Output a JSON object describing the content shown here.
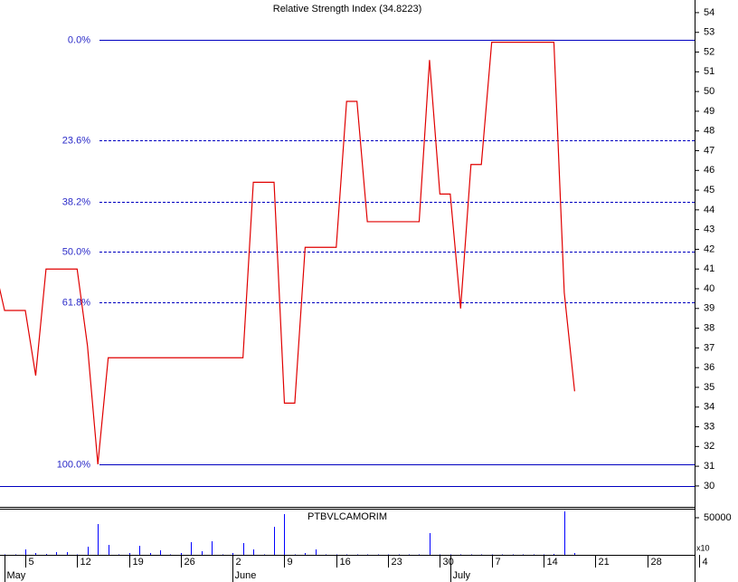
{
  "chart_data": {
    "type": "line",
    "title": "Relative Strength Index (34.8223)",
    "categories": [
      null,
      null,
      null,
      "5",
      null,
      null,
      null,
      null,
      "12",
      null,
      null,
      null,
      null,
      "19",
      null,
      null,
      null,
      null,
      "26",
      null,
      null,
      null,
      null,
      "2",
      null,
      null,
      null,
      null,
      "9",
      null,
      null,
      null,
      null,
      "16",
      null,
      null,
      null,
      null,
      "23",
      null,
      null,
      null,
      null,
      "30",
      null,
      null,
      null,
      null,
      "7",
      null,
      null,
      null,
      null,
      "14",
      null,
      null,
      null,
      null,
      "21",
      null,
      null,
      null,
      null,
      "28",
      null,
      null,
      null,
      null,
      "4"
    ],
    "category_groups": [
      null,
      "May",
      null,
      null,
      null,
      null,
      null,
      null,
      null,
      null,
      null,
      null,
      null,
      null,
      null,
      null,
      null,
      null,
      null,
      null,
      null,
      null,
      null,
      "June",
      null,
      null,
      null,
      null,
      null,
      null,
      null,
      null,
      null,
      null,
      null,
      null,
      null,
      null,
      null,
      null,
      null,
      null,
      null,
      null,
      "July",
      null,
      null,
      null,
      null,
      null,
      null,
      null,
      null,
      null,
      null,
      null,
      null,
      null,
      null,
      null,
      null,
      null,
      null,
      null,
      null,
      null,
      null,
      null,
      null
    ],
    "series": [
      {
        "color": "#e00000",
        "values": [
          41.2,
          38.9,
          38.9,
          38.9,
          35.6,
          41.0,
          41.0,
          41.0,
          41.0,
          37.1,
          31.1,
          36.5,
          36.5,
          36.5,
          36.5,
          36.5,
          36.5,
          36.5,
          36.5,
          36.5,
          36.5,
          36.5,
          36.5,
          36.5,
          36.5,
          45.4,
          45.4,
          45.4,
          34.2,
          34.2,
          42.1,
          42.1,
          42.1,
          42.1,
          49.5,
          49.5,
          43.4,
          43.4,
          43.4,
          43.4,
          43.4,
          43.4,
          51.6,
          44.8,
          44.8,
          39.0,
          46.3,
          46.3,
          52.5,
          52.5,
          52.5,
          52.5,
          52.5,
          52.5,
          52.5,
          39.8,
          34.8,
          null,
          null,
          null,
          null,
          null,
          null,
          null,
          null,
          null,
          null,
          null,
          null
        ]
      }
    ],
    "ylim": [
      28.94,
      54.64
    ],
    "yticks": [
      30,
      31,
      32,
      33,
      34,
      35,
      36,
      37,
      38,
      39,
      40,
      41,
      42,
      43,
      44,
      45,
      46,
      47,
      48,
      49,
      50,
      51,
      52,
      53,
      54
    ],
    "levels": [
      {
        "label": "0.0%",
        "value": 52.62,
        "style": "solid"
      },
      {
        "label": "23.6%",
        "value": 47.54,
        "style": "dashed"
      },
      {
        "label": "38.2%",
        "value": 44.4,
        "style": "dashed"
      },
      {
        "label": "50.0%",
        "value": 41.86,
        "style": "dashed"
      },
      {
        "label": "61.8%",
        "value": 39.32,
        "style": "dashed"
      },
      {
        "label": "100.0%",
        "value": 31.1,
        "style": "solid"
      }
    ],
    "level_color": "#0000c0",
    "hlines": [
      30
    ],
    "volume": {
      "title": "PTBVLCAMORIM",
      "color": "#0000ff",
      "scale_label": "x10",
      "ylim": [
        0,
        62200
      ],
      "yticks": [
        50000
      ],
      "values": [
        600,
        600,
        600,
        7300,
        2400,
        1200,
        3700,
        3700,
        600,
        11000,
        41500,
        13400,
        600,
        2400,
        12200,
        2400,
        6100,
        600,
        2400,
        17000,
        4900,
        18300,
        600,
        2400,
        15900,
        7300,
        600,
        37800,
        54900,
        600,
        2400,
        7300,
        600,
        600,
        600,
        600,
        600,
        600,
        600,
        600,
        600,
        600,
        29300,
        600,
        600,
        600,
        600,
        600,
        600,
        600,
        600,
        600,
        600,
        600,
        1200,
        58600,
        2400,
        null,
        null,
        null,
        null,
        null,
        null,
        null,
        null,
        null,
        null,
        null,
        null
      ]
    }
  }
}
